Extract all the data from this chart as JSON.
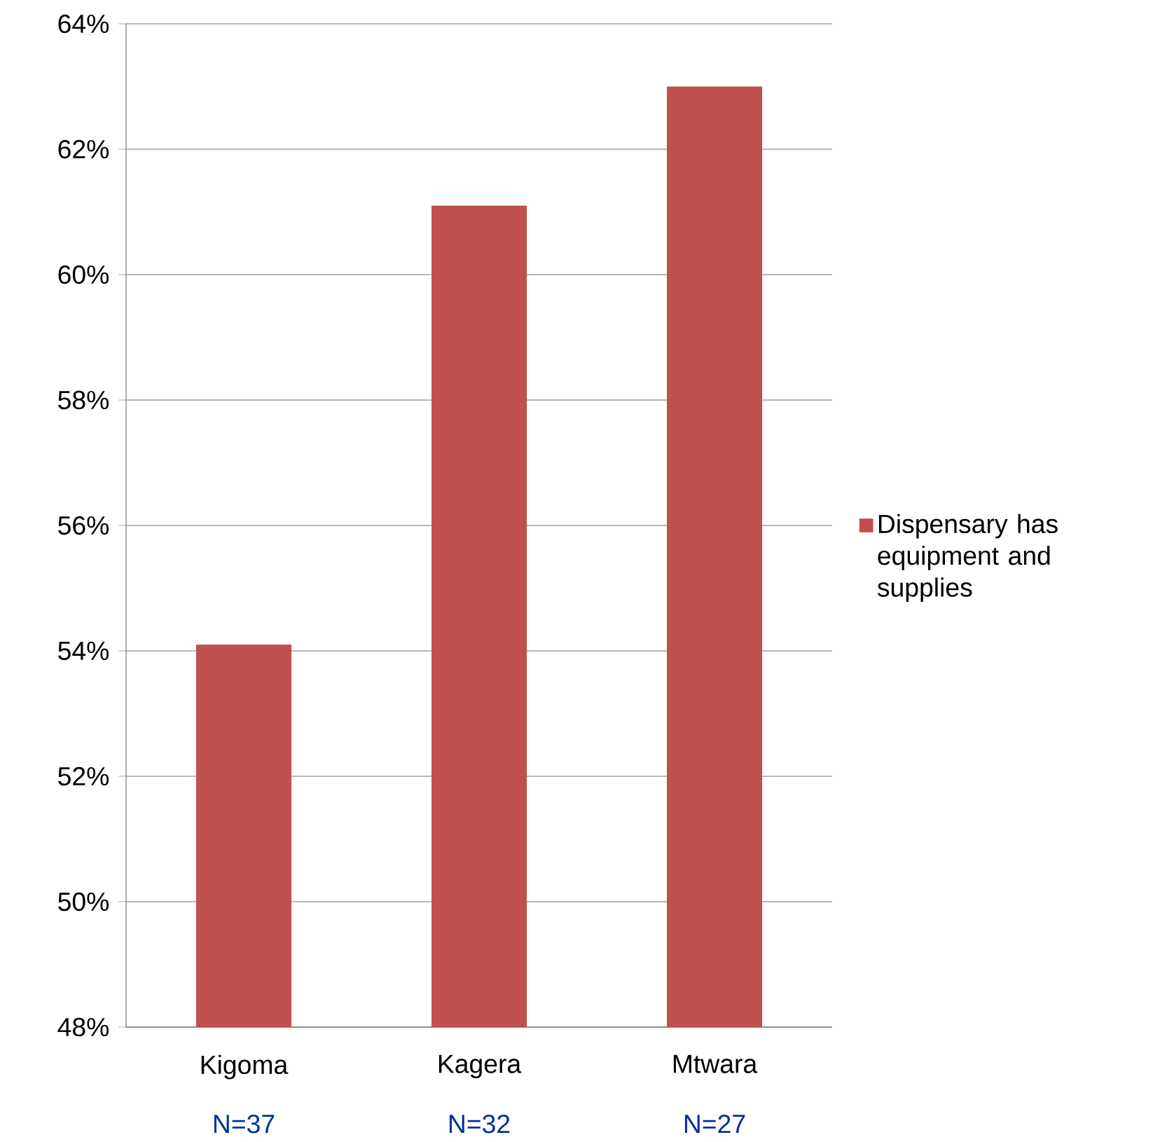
{
  "chart_data": {
    "type": "bar",
    "categories": [
      "Kigoma",
      "Kagera",
      "Mtwara"
    ],
    "series": [
      {
        "name": "Dispensary has equipment and supplies",
        "color": "#c0504d",
        "values": [
          54.1,
          61.1,
          63.0
        ]
      }
    ],
    "ylim": [
      48,
      64
    ],
    "yticks": [
      {
        "value": 48,
        "label": "48%"
      },
      {
        "value": 50,
        "label": "50%"
      },
      {
        "value": 52,
        "label": "52%"
      },
      {
        "value": 54,
        "label": "54%"
      },
      {
        "value": 56,
        "label": "56%"
      },
      {
        "value": 58,
        "label": "58%"
      },
      {
        "value": 60,
        "label": "60%"
      },
      {
        "value": 62,
        "label": "62%"
      },
      {
        "value": 64,
        "label": "64%"
      }
    ],
    "grid": "y",
    "legend": "right",
    "annotations": [
      "N=37",
      "N=32",
      "N=27"
    ]
  }
}
